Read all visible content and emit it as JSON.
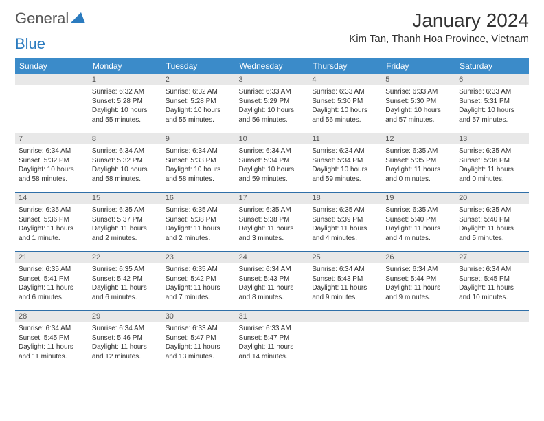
{
  "logo": {
    "text1": "General",
    "text2": "Blue"
  },
  "header": {
    "title": "January 2024",
    "location": "Kim Tan, Thanh Hoa Province, Vietnam"
  },
  "colors": {
    "header_bg": "#3b8bc9",
    "border": "#2f6fa8",
    "daybg": "#e8e8e8"
  },
  "dow": [
    "Sunday",
    "Monday",
    "Tuesday",
    "Wednesday",
    "Thursday",
    "Friday",
    "Saturday"
  ],
  "weeks": [
    [
      null,
      {
        "n": "1",
        "sr": "Sunrise: 6:32 AM",
        "ss": "Sunset: 5:28 PM",
        "dl": "Daylight: 10 hours and 55 minutes."
      },
      {
        "n": "2",
        "sr": "Sunrise: 6:32 AM",
        "ss": "Sunset: 5:28 PM",
        "dl": "Daylight: 10 hours and 55 minutes."
      },
      {
        "n": "3",
        "sr": "Sunrise: 6:33 AM",
        "ss": "Sunset: 5:29 PM",
        "dl": "Daylight: 10 hours and 56 minutes."
      },
      {
        "n": "4",
        "sr": "Sunrise: 6:33 AM",
        "ss": "Sunset: 5:30 PM",
        "dl": "Daylight: 10 hours and 56 minutes."
      },
      {
        "n": "5",
        "sr": "Sunrise: 6:33 AM",
        "ss": "Sunset: 5:30 PM",
        "dl": "Daylight: 10 hours and 57 minutes."
      },
      {
        "n": "6",
        "sr": "Sunrise: 6:33 AM",
        "ss": "Sunset: 5:31 PM",
        "dl": "Daylight: 10 hours and 57 minutes."
      }
    ],
    [
      {
        "n": "7",
        "sr": "Sunrise: 6:34 AM",
        "ss": "Sunset: 5:32 PM",
        "dl": "Daylight: 10 hours and 58 minutes."
      },
      {
        "n": "8",
        "sr": "Sunrise: 6:34 AM",
        "ss": "Sunset: 5:32 PM",
        "dl": "Daylight: 10 hours and 58 minutes."
      },
      {
        "n": "9",
        "sr": "Sunrise: 6:34 AM",
        "ss": "Sunset: 5:33 PM",
        "dl": "Daylight: 10 hours and 58 minutes."
      },
      {
        "n": "10",
        "sr": "Sunrise: 6:34 AM",
        "ss": "Sunset: 5:34 PM",
        "dl": "Daylight: 10 hours and 59 minutes."
      },
      {
        "n": "11",
        "sr": "Sunrise: 6:34 AM",
        "ss": "Sunset: 5:34 PM",
        "dl": "Daylight: 10 hours and 59 minutes."
      },
      {
        "n": "12",
        "sr": "Sunrise: 6:35 AM",
        "ss": "Sunset: 5:35 PM",
        "dl": "Daylight: 11 hours and 0 minutes."
      },
      {
        "n": "13",
        "sr": "Sunrise: 6:35 AM",
        "ss": "Sunset: 5:36 PM",
        "dl": "Daylight: 11 hours and 0 minutes."
      }
    ],
    [
      {
        "n": "14",
        "sr": "Sunrise: 6:35 AM",
        "ss": "Sunset: 5:36 PM",
        "dl": "Daylight: 11 hours and 1 minute."
      },
      {
        "n": "15",
        "sr": "Sunrise: 6:35 AM",
        "ss": "Sunset: 5:37 PM",
        "dl": "Daylight: 11 hours and 2 minutes."
      },
      {
        "n": "16",
        "sr": "Sunrise: 6:35 AM",
        "ss": "Sunset: 5:38 PM",
        "dl": "Daylight: 11 hours and 2 minutes."
      },
      {
        "n": "17",
        "sr": "Sunrise: 6:35 AM",
        "ss": "Sunset: 5:38 PM",
        "dl": "Daylight: 11 hours and 3 minutes."
      },
      {
        "n": "18",
        "sr": "Sunrise: 6:35 AM",
        "ss": "Sunset: 5:39 PM",
        "dl": "Daylight: 11 hours and 4 minutes."
      },
      {
        "n": "19",
        "sr": "Sunrise: 6:35 AM",
        "ss": "Sunset: 5:40 PM",
        "dl": "Daylight: 11 hours and 4 minutes."
      },
      {
        "n": "20",
        "sr": "Sunrise: 6:35 AM",
        "ss": "Sunset: 5:40 PM",
        "dl": "Daylight: 11 hours and 5 minutes."
      }
    ],
    [
      {
        "n": "21",
        "sr": "Sunrise: 6:35 AM",
        "ss": "Sunset: 5:41 PM",
        "dl": "Daylight: 11 hours and 6 minutes."
      },
      {
        "n": "22",
        "sr": "Sunrise: 6:35 AM",
        "ss": "Sunset: 5:42 PM",
        "dl": "Daylight: 11 hours and 6 minutes."
      },
      {
        "n": "23",
        "sr": "Sunrise: 6:35 AM",
        "ss": "Sunset: 5:42 PM",
        "dl": "Daylight: 11 hours and 7 minutes."
      },
      {
        "n": "24",
        "sr": "Sunrise: 6:34 AM",
        "ss": "Sunset: 5:43 PM",
        "dl": "Daylight: 11 hours and 8 minutes."
      },
      {
        "n": "25",
        "sr": "Sunrise: 6:34 AM",
        "ss": "Sunset: 5:43 PM",
        "dl": "Daylight: 11 hours and 9 minutes."
      },
      {
        "n": "26",
        "sr": "Sunrise: 6:34 AM",
        "ss": "Sunset: 5:44 PM",
        "dl": "Daylight: 11 hours and 9 minutes."
      },
      {
        "n": "27",
        "sr": "Sunrise: 6:34 AM",
        "ss": "Sunset: 5:45 PM",
        "dl": "Daylight: 11 hours and 10 minutes."
      }
    ],
    [
      {
        "n": "28",
        "sr": "Sunrise: 6:34 AM",
        "ss": "Sunset: 5:45 PM",
        "dl": "Daylight: 11 hours and 11 minutes."
      },
      {
        "n": "29",
        "sr": "Sunrise: 6:34 AM",
        "ss": "Sunset: 5:46 PM",
        "dl": "Daylight: 11 hours and 12 minutes."
      },
      {
        "n": "30",
        "sr": "Sunrise: 6:33 AM",
        "ss": "Sunset: 5:47 PM",
        "dl": "Daylight: 11 hours and 13 minutes."
      },
      {
        "n": "31",
        "sr": "Sunrise: 6:33 AM",
        "ss": "Sunset: 5:47 PM",
        "dl": "Daylight: 11 hours and 14 minutes."
      },
      null,
      null,
      null
    ]
  ]
}
